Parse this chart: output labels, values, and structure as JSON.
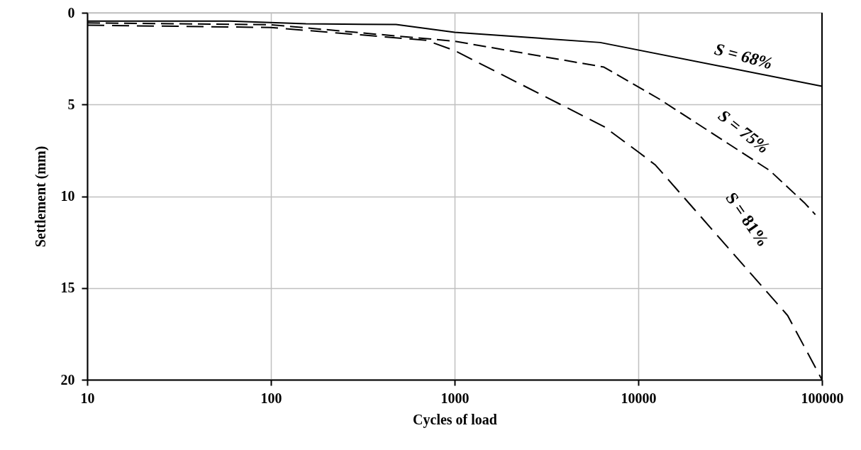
{
  "chart_data": {
    "type": "line",
    "xlabel": "Cycles of load",
    "ylabel": "Settlement (mm)",
    "log": "x",
    "grid": true,
    "marker": "none",
    "xlim": [
      10,
      100000
    ],
    "xticks": [
      10,
      100,
      1000,
      10000,
      100000
    ],
    "ylim": [
      20,
      0
    ],
    "yticks": [
      0,
      5,
      10,
      15,
      20
    ],
    "series": [
      {
        "color": "#000000",
        "line_style": "solid",
        "x": [
          10,
          60,
          155,
          480,
          1000,
          6200,
          100000
        ],
        "values": [
          0.45,
          0.45,
          0.6,
          0.64,
          1.06,
          1.62,
          4.0
        ]
      },
      {
        "color": "#000000",
        "line_style": "dashed",
        "x": [
          10,
          100,
          1000,
          6500,
          13000,
          52000,
          81000,
          92000
        ],
        "values": [
          0.55,
          0.65,
          1.55,
          2.96,
          4.7,
          8.6,
          10.4,
          11.0
        ]
      },
      {
        "color": "#000000",
        "line_style": "dashed",
        "x": [
          10,
          100,
          700,
          1000,
          6500,
          10200,
          12400,
          65000,
          100000
        ],
        "values": [
          0.68,
          0.8,
          1.5,
          2.06,
          6.2,
          7.65,
          8.3,
          16.5,
          20
        ]
      }
    ],
    "annotations": [
      "S = 68%",
      "S = 75%",
      "S = 81%"
    ]
  }
}
